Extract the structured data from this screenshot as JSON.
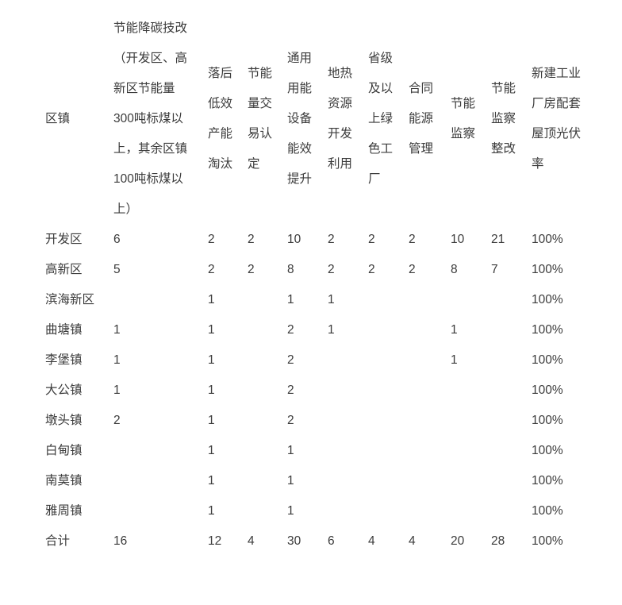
{
  "page": {
    "background_color": "#ffffff",
    "text_color": "#3b3b3b"
  },
  "table": {
    "columns": [
      "区镇",
      "节能降碳技改（开发区、高新区节能量300吨标煤以上，其余区镇100吨标煤以上）",
      "落后低效产能淘汰",
      "节能量交易认定",
      "通用用能设备能效提升",
      "地热资源开发利用",
      "省级及以上绿色工厂",
      "合同能源管理",
      "节能监察",
      "节能监察整改",
      "新建工业厂房配套屋顶光伏率"
    ],
    "rows": [
      {
        "name": "开发区",
        "values": [
          "6",
          "2",
          "2",
          "10",
          "2",
          "2",
          "2",
          "10",
          "21",
          "100%"
        ]
      },
      {
        "name": "高新区",
        "values": [
          "5",
          "2",
          "2",
          "8",
          "2",
          "2",
          "2",
          "8",
          "7",
          "100%"
        ]
      },
      {
        "name": "滨海新区",
        "values": [
          "",
          "1",
          "",
          "1",
          "1",
          "",
          "",
          "",
          "",
          "100%"
        ]
      },
      {
        "name": "曲塘镇",
        "values": [
          "1",
          "1",
          "",
          "2",
          "1",
          "",
          "",
          "1",
          "",
          "100%"
        ]
      },
      {
        "name": "李堡镇",
        "values": [
          "1",
          "1",
          "",
          "2",
          "",
          "",
          "",
          "1",
          "",
          "100%"
        ]
      },
      {
        "name": "大公镇",
        "values": [
          "1",
          "1",
          "",
          "2",
          "",
          "",
          "",
          "",
          "",
          "100%"
        ]
      },
      {
        "name": "墩头镇",
        "values": [
          "2",
          "1",
          "",
          "2",
          "",
          "",
          "",
          "",
          "",
          "100%"
        ]
      },
      {
        "name": "白甸镇",
        "values": [
          "",
          "1",
          "",
          "1",
          "",
          "",
          "",
          "",
          "",
          "100%"
        ]
      },
      {
        "name": "南莫镇",
        "values": [
          "",
          "1",
          "",
          "1",
          "",
          "",
          "",
          "",
          "",
          "100%"
        ]
      },
      {
        "name": "雅周镇",
        "values": [
          "",
          "1",
          "",
          "1",
          "",
          "",
          "",
          "",
          "",
          "100%"
        ]
      },
      {
        "name": "合计",
        "values": [
          "16",
          "12",
          "4",
          "30",
          "6",
          "4",
          "4",
          "20",
          "28",
          "100%"
        ]
      }
    ]
  }
}
